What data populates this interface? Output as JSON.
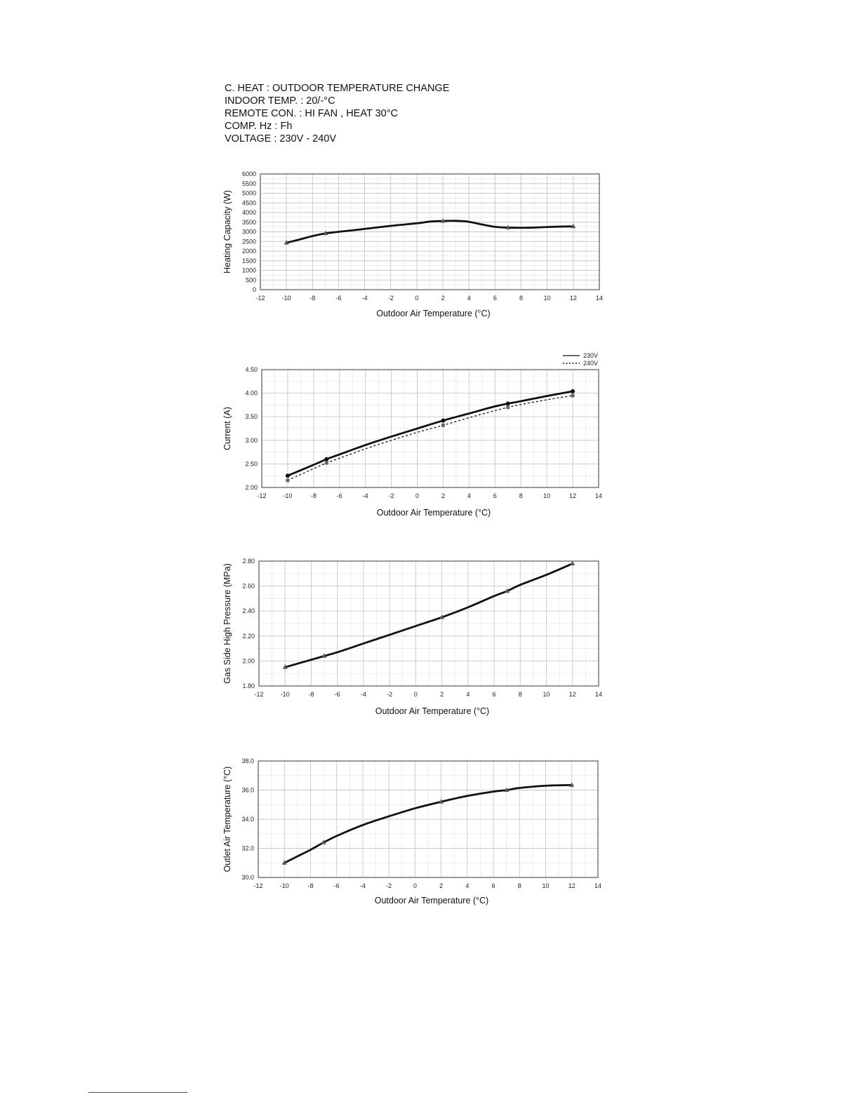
{
  "header": {
    "lines": [
      "C. HEAT : OUTDOOR TEMPERATURE CHANGE",
      "INDOOR TEMP. : 20/-°C",
      "REMOTE CON. : HI FAN , HEAT 30°C",
      "COMP. Hz : Fh",
      "VOLTAGE : 230V - 240V"
    ]
  },
  "chart_data": [
    {
      "type": "line",
      "xlabel": "Outdoor Air Temperature (°C)",
      "ylabel": "Heating Capacity (W)",
      "xlim": [
        -12,
        14
      ],
      "ylim": [
        0,
        6000
      ],
      "xticks": [
        "-12",
        "-10",
        "-8",
        "-6",
        "-4",
        "-2",
        "0",
        "2",
        "4",
        "6",
        "8",
        "10",
        "12",
        "14"
      ],
      "yticks": [
        "0",
        "500",
        "1000",
        "1500",
        "2000",
        "2500",
        "3000",
        "3500",
        "4000",
        "4500",
        "5000",
        "5500",
        "6000"
      ],
      "grid": true,
      "series": [
        {
          "x": [
            -10,
            -9,
            -8,
            -7,
            -6,
            -4,
            -2,
            0,
            1,
            2,
            3,
            4,
            5,
            6,
            7,
            8,
            9,
            10,
            11,
            12
          ],
          "y": [
            2430,
            2600,
            2780,
            2920,
            3000,
            3150,
            3310,
            3440,
            3530,
            3560,
            3570,
            3520,
            3380,
            3260,
            3220,
            3210,
            3220,
            3250,
            3270,
            3280
          ],
          "markers_at": [
            -10,
            -7,
            2,
            7,
            12
          ]
        }
      ]
    },
    {
      "type": "line",
      "xlabel": "Outdoor Air Temperature (°C)",
      "ylabel": "Current (A)",
      "xlim": [
        -12,
        14
      ],
      "ylim": [
        2.0,
        4.5
      ],
      "xticks": [
        "-12",
        "-10",
        "-8",
        "-6",
        "-4",
        "-2",
        "0",
        "2",
        "4",
        "6",
        "8",
        "10",
        "12",
        "14"
      ],
      "yticks": [
        "2.00",
        "2.50",
        "3.00",
        "3.50",
        "4.00",
        "4.50"
      ],
      "grid": true,
      "legend_position": "top-right",
      "series": [
        {
          "name": "230V",
          "style": "solid",
          "x": [
            -10,
            -8,
            -7,
            -6,
            -4,
            -2,
            0,
            2,
            4,
            6,
            7,
            8,
            10,
            12
          ],
          "y": [
            2.25,
            2.48,
            2.6,
            2.7,
            2.9,
            3.08,
            3.25,
            3.42,
            3.57,
            3.72,
            3.78,
            3.83,
            3.94,
            4.04
          ],
          "markers_at": [
            -10,
            -7,
            2,
            7,
            12
          ]
        },
        {
          "name": "240V",
          "style": "dotted",
          "x": [
            -10,
            -8,
            -7,
            -6,
            -4,
            -2,
            0,
            2,
            4,
            6,
            7,
            8,
            10,
            12
          ],
          "y": [
            2.15,
            2.4,
            2.52,
            2.62,
            2.82,
            3.0,
            3.17,
            3.32,
            3.48,
            3.63,
            3.7,
            3.76,
            3.86,
            3.95
          ],
          "markers_at": [
            -10,
            -7,
            2,
            7,
            12
          ]
        }
      ]
    },
    {
      "type": "line",
      "xlabel": "Outdoor Air Temperature (°C)",
      "ylabel": "Gas Side High Pressure (MPa)",
      "xlim": [
        -12,
        14
      ],
      "ylim": [
        1.8,
        2.8
      ],
      "xticks": [
        "-12",
        "-10",
        "-8",
        "-6",
        "-4",
        "-2",
        "0",
        "2",
        "4",
        "6",
        "8",
        "10",
        "12",
        "14"
      ],
      "yticks": [
        "1.80",
        "2.00",
        "2.20",
        "2.40",
        "2.60",
        "2.80"
      ],
      "grid": true,
      "series": [
        {
          "x": [
            -10,
            -8,
            -7,
            -6,
            -4,
            -2,
            0,
            2,
            4,
            6,
            7,
            8,
            10,
            12
          ],
          "y": [
            1.95,
            2.01,
            2.04,
            2.07,
            2.14,
            2.21,
            2.28,
            2.35,
            2.43,
            2.52,
            2.56,
            2.61,
            2.69,
            2.78
          ],
          "markers_at": [
            -10,
            -7,
            2,
            7,
            12
          ]
        }
      ]
    },
    {
      "type": "line",
      "xlabel": "Outdoor Air Temperature (°C)",
      "ylabel": "Outlet Air Temperature (°C)",
      "xlim": [
        -12,
        14
      ],
      "ylim": [
        30.0,
        38.0
      ],
      "xticks": [
        "-12",
        "-10",
        "-8",
        "-6",
        "-4",
        "-2",
        "0",
        "2",
        "4",
        "6",
        "8",
        "10",
        "12",
        "14"
      ],
      "yticks": [
        "30.0",
        "32.0",
        "34.0",
        "36.0",
        "38.0"
      ],
      "grid": true,
      "series": [
        {
          "x": [
            -10,
            -9,
            -8,
            -7,
            -6,
            -4,
            -2,
            0,
            2,
            4,
            6,
            7,
            8,
            10,
            12
          ],
          "y": [
            31.0,
            31.45,
            31.9,
            32.4,
            32.85,
            33.6,
            34.2,
            34.75,
            35.2,
            35.6,
            35.9,
            36.0,
            36.15,
            36.3,
            36.35
          ],
          "markers_at": [
            -10,
            -7,
            2,
            7,
            12
          ]
        }
      ]
    }
  ]
}
